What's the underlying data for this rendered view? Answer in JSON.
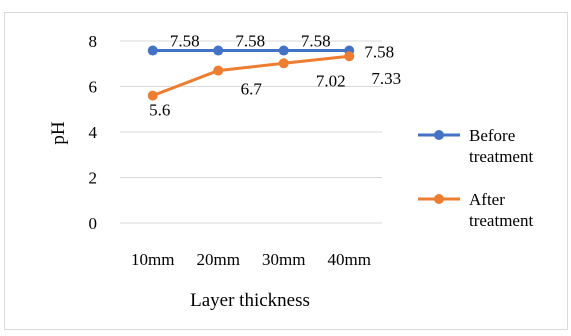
{
  "chart_data": {
    "type": "line",
    "categories": [
      "10mm",
      "20mm",
      "30mm",
      "40mm"
    ],
    "xlabel": "Layer thickness",
    "ylabel": "pH",
    "ylim": [
      0,
      8
    ],
    "yticks": [
      "0",
      "2",
      "4",
      "6",
      "8"
    ],
    "grid": true,
    "legend_position": "right",
    "series": [
      {
        "name": "Before treatment",
        "legend_lines": [
          "Before",
          "treatment"
        ],
        "color": "#4472C4",
        "values": [
          7.58,
          7.58,
          7.58,
          7.58
        ],
        "labels": [
          "7.58",
          "7.58",
          "7.58",
          "7.58"
        ]
      },
      {
        "name": "After treatment",
        "legend_lines": [
          "After",
          "treatment"
        ],
        "color": "#ED7D31",
        "values": [
          5.6,
          6.7,
          7.02,
          7.33
        ],
        "labels": [
          "5.6",
          "6.7",
          "7.02",
          "7.33"
        ]
      }
    ]
  }
}
